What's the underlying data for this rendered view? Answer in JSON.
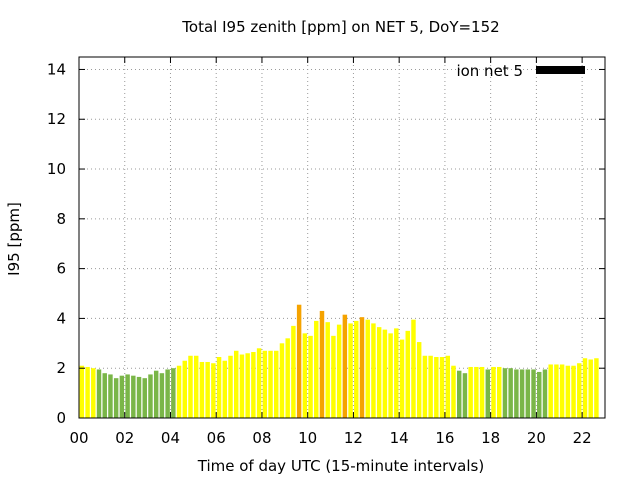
{
  "chart_data": {
    "type": "bar",
    "title": "Total I95 zenith [ppm] on NET 5, DoY=152",
    "xlabel": "Time of day UTC (15-minute intervals)",
    "ylabel": "I95 [ppm]",
    "xlim": [
      0,
      23
    ],
    "ylim": [
      0,
      14.5
    ],
    "x_ticks": [
      "00",
      "02",
      "04",
      "06",
      "08",
      "10",
      "12",
      "14",
      "16",
      "18",
      "20",
      "22"
    ],
    "y_ticks": [
      "0",
      "2",
      "4",
      "6",
      "8",
      "10",
      "12",
      "14"
    ],
    "grid": true,
    "legend": {
      "label": "ion net 5",
      "position": "top-right",
      "color": "#000000"
    },
    "interval_hours": 0.25,
    "colors": {
      "low": "#7ab648",
      "medium": "#ffff00",
      "high": "#f5a300"
    },
    "categories": [
      "00:00",
      "00:15",
      "00:30",
      "00:45",
      "01:00",
      "01:15",
      "01:30",
      "01:45",
      "02:00",
      "02:15",
      "02:30",
      "02:45",
      "03:00",
      "03:15",
      "03:30",
      "03:45",
      "04:00",
      "04:15",
      "04:30",
      "04:45",
      "05:00",
      "05:15",
      "05:30",
      "05:45",
      "06:00",
      "06:15",
      "06:30",
      "06:45",
      "07:00",
      "07:15",
      "07:30",
      "07:45",
      "08:00",
      "08:15",
      "08:30",
      "08:45",
      "09:00",
      "09:15",
      "09:30",
      "09:45",
      "10:00",
      "10:15",
      "10:30",
      "10:45",
      "11:00",
      "11:15",
      "11:30",
      "11:45",
      "12:00",
      "12:15",
      "12:30",
      "12:45",
      "13:00",
      "13:15",
      "13:30",
      "13:45",
      "14:00",
      "14:15",
      "14:30",
      "14:45",
      "15:00",
      "15:15",
      "15:30",
      "15:45",
      "16:00",
      "16:15",
      "16:30",
      "16:45",
      "17:00",
      "17:15",
      "17:30",
      "17:45",
      "18:00",
      "18:15",
      "18:30",
      "18:45",
      "19:00",
      "19:15",
      "19:30",
      "19:45",
      "20:00",
      "20:15",
      "20:30",
      "20:45",
      "21:00",
      "21:15",
      "21:30",
      "21:45",
      "22:00",
      "22:15",
      "22:30"
    ],
    "values": [
      2.1,
      2.05,
      2.0,
      1.95,
      1.8,
      1.75,
      1.6,
      1.7,
      1.75,
      1.7,
      1.65,
      1.6,
      1.75,
      1.9,
      1.8,
      1.95,
      2.0,
      2.1,
      2.3,
      2.5,
      2.5,
      2.25,
      2.25,
      2.2,
      2.45,
      2.3,
      2.5,
      2.7,
      2.55,
      2.6,
      2.65,
      2.8,
      2.7,
      2.7,
      2.7,
      3.0,
      3.2,
      3.7,
      4.55,
      3.4,
      3.3,
      3.9,
      4.3,
      3.85,
      3.3,
      3.75,
      4.15,
      3.8,
      3.9,
      4.05,
      3.95,
      3.8,
      3.65,
      3.55,
      3.4,
      3.6,
      3.15,
      3.5,
      3.95,
      3.05,
      2.5,
      2.5,
      2.45,
      2.45,
      2.5,
      2.1,
      1.9,
      1.8,
      2.05,
      2.05,
      2.05,
      1.95,
      2.05,
      2.05,
      2.0,
      2.0,
      1.95,
      1.95,
      1.95,
      1.95,
      1.85,
      1.95,
      2.15,
      2.15,
      2.15,
      2.1,
      2.1,
      2.2,
      2.4,
      2.35,
      2.4
    ],
    "level": [
      "medium",
      "medium",
      "medium",
      "low",
      "low",
      "low",
      "low",
      "low",
      "low",
      "low",
      "low",
      "low",
      "low",
      "low",
      "low",
      "low",
      "low",
      "medium",
      "medium",
      "medium",
      "medium",
      "medium",
      "medium",
      "medium",
      "medium",
      "medium",
      "medium",
      "medium",
      "medium",
      "medium",
      "medium",
      "medium",
      "medium",
      "medium",
      "medium",
      "medium",
      "medium",
      "medium",
      "high",
      "medium",
      "medium",
      "medium",
      "high",
      "medium",
      "medium",
      "medium",
      "high",
      "medium",
      "medium",
      "high",
      "medium",
      "medium",
      "medium",
      "medium",
      "medium",
      "medium",
      "medium",
      "medium",
      "medium",
      "medium",
      "medium",
      "medium",
      "medium",
      "medium",
      "medium",
      "medium",
      "low",
      "low",
      "medium",
      "medium",
      "medium",
      "low",
      "medium",
      "medium",
      "low",
      "low",
      "low",
      "low",
      "low",
      "low",
      "low",
      "low",
      "medium",
      "medium",
      "medium",
      "medium",
      "medium",
      "medium",
      "medium",
      "medium",
      "medium"
    ]
  }
}
